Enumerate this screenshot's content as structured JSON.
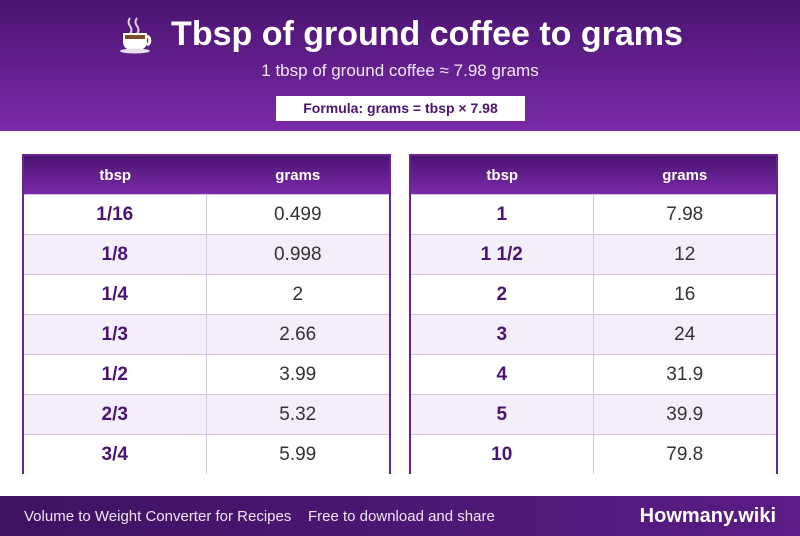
{
  "header": {
    "icon": "hot-beverage-icon",
    "title": "Tbsp of ground coffee to grams",
    "subtitle": "1 tbsp of ground coffee ≈ 7.98 grams",
    "formula": "Formula: grams = tbsp × 7.98"
  },
  "tables": {
    "left": {
      "col_a": "tbsp",
      "col_b": "grams",
      "rows": [
        {
          "tbsp": "1/16",
          "grams": "0.499"
        },
        {
          "tbsp": "1/8",
          "grams": "0.998"
        },
        {
          "tbsp": "1/4",
          "grams": "2"
        },
        {
          "tbsp": "1/3",
          "grams": "2.66"
        },
        {
          "tbsp": "1/2",
          "grams": "3.99"
        },
        {
          "tbsp": "2/3",
          "grams": "5.32"
        },
        {
          "tbsp": "3/4",
          "grams": "5.99"
        }
      ]
    },
    "right": {
      "col_a": "tbsp",
      "col_b": "grams",
      "rows": [
        {
          "tbsp": "1",
          "grams": "7.98"
        },
        {
          "tbsp": "1 1/2",
          "grams": "12"
        },
        {
          "tbsp": "2",
          "grams": "16"
        },
        {
          "tbsp": "3",
          "grams": "24"
        },
        {
          "tbsp": "4",
          "grams": "31.9"
        },
        {
          "tbsp": "5",
          "grams": "39.9"
        },
        {
          "tbsp": "10",
          "grams": "79.8"
        }
      ]
    }
  },
  "footer": {
    "left": "Volume to Weight Converter for Recipes",
    "middle": "Free to download and share",
    "brand": "Howmany.wiki"
  },
  "colors": {
    "primary": "#6a2196",
    "dark": "#4a1470",
    "row_alt": "#f4eefa"
  }
}
